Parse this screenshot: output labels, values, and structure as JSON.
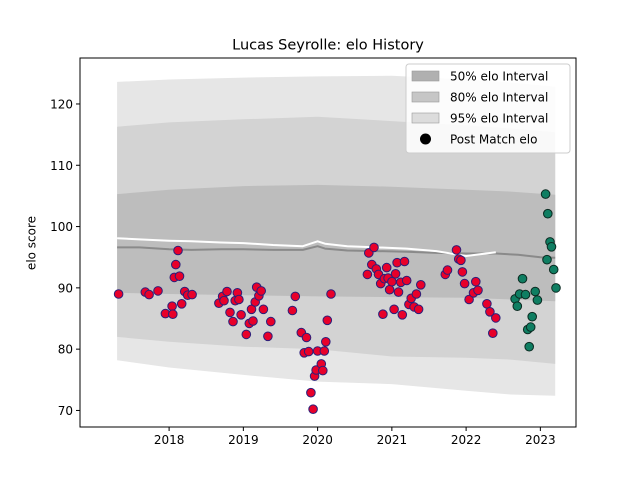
{
  "chart_data": {
    "type": "scatter",
    "title": "Lucas Seyrolle: elo History",
    "xlabel": "",
    "ylabel": "elo score",
    "xlim": [
      2016.8,
      2023.48
    ],
    "ylim": [
      67.3,
      127.5
    ],
    "x_ticks": [
      {
        "value": 2018,
        "label": "2018"
      },
      {
        "value": 2019,
        "label": "2019"
      },
      {
        "value": 2020,
        "label": "2020"
      },
      {
        "value": 2021,
        "label": "2021"
      },
      {
        "value": 2022,
        "label": "2022"
      },
      {
        "value": 2023,
        "label": "2023"
      }
    ],
    "y_ticks": [
      {
        "value": 70,
        "label": "70"
      },
      {
        "value": 80,
        "label": "80"
      },
      {
        "value": 90,
        "label": "90"
      },
      {
        "value": 100,
        "label": "100"
      },
      {
        "value": 110,
        "label": "110"
      },
      {
        "value": 120,
        "label": "120"
      }
    ],
    "legend_position": "top-right",
    "legend": [
      {
        "label": "50% elo Interval",
        "kind": "band",
        "color": "#b0b0b0"
      },
      {
        "label": "80% elo Interval",
        "kind": "band",
        "color": "#c6c6c6"
      },
      {
        "label": "95% elo Interval",
        "kind": "band",
        "color": "#dcdcdc"
      },
      {
        "label": "Post Match elo",
        "kind": "marker",
        "color": "#000000"
      }
    ],
    "colors": {
      "band_95": "#e6e6e6",
      "band_80": "#d3d3d3",
      "band_50": "#bdbdbd",
      "mean_line": "#8a8a8a",
      "median_line": "#ffffff",
      "history_fill": "#e8002a",
      "history_edge": "#2b1f7a",
      "recent_fill": "#0f7e62",
      "recent_edge": "#0b2b22"
    },
    "bands": {
      "x": [
        2017.3,
        2018.0,
        2019.0,
        2020.0,
        2021.0,
        2022.0,
        2022.6,
        2023.2
      ],
      "band_95": {
        "lower": [
          78.2,
          77.0,
          75.8,
          74.7,
          74.3,
          73.2,
          72.6,
          72.4
        ],
        "upper": [
          123.6,
          124.0,
          124.3,
          124.5,
          124.6,
          124.0,
          123.5,
          122.8
        ]
      },
      "band_80": {
        "lower": [
          82.0,
          81.2,
          80.4,
          80.0,
          78.8,
          78.6,
          78.3,
          77.6
        ],
        "upper": [
          116.3,
          117.0,
          117.5,
          117.9,
          117.2,
          116.5,
          116.0,
          115.4
        ]
      },
      "band_50": {
        "lower": [
          89.2,
          89.0,
          88.8,
          88.6,
          88.5,
          88.4,
          88.1,
          87.8
        ],
        "upper": [
          105.3,
          106.0,
          106.6,
          106.8,
          106.5,
          106.0,
          105.7,
          105.2
        ]
      }
    },
    "mean_line": {
      "x": [
        2017.3,
        2017.6,
        2018.0,
        2018.3,
        2018.7,
        2019.0,
        2019.4,
        2019.8,
        2020.0,
        2020.1,
        2020.4,
        2020.8,
        2021.2,
        2021.6,
        2022.0,
        2022.4,
        2022.7,
        2023.0,
        2023.2
      ],
      "y": [
        96.6,
        96.6,
        96.3,
        96.2,
        96.3,
        96.3,
        96.2,
        96.2,
        96.8,
        96.4,
        96.1,
        96.0,
        95.9,
        95.7,
        95.6,
        95.6,
        95.4,
        95.0,
        94.9
      ]
    },
    "median_line": {
      "x": [
        2017.3,
        2017.6,
        2018.0,
        2018.3,
        2018.7,
        2019.0,
        2019.4,
        2019.8,
        2020.0,
        2020.1,
        2020.4,
        2020.8,
        2021.2,
        2021.6,
        2022.0,
        2022.4
      ],
      "y": [
        98.1,
        97.9,
        97.7,
        97.6,
        97.4,
        97.3,
        97.0,
        96.8,
        97.6,
        97.2,
        96.8,
        96.6,
        96.4,
        96.0,
        95.2,
        95.8
      ]
    },
    "series": [
      {
        "name": "Post Match elo",
        "group": "history",
        "points": [
          [
            2017.32,
            89.0
          ],
          [
            2017.68,
            89.3
          ],
          [
            2017.73,
            88.9
          ],
          [
            2017.85,
            89.5
          ],
          [
            2017.95,
            85.8
          ],
          [
            2018.04,
            87.0
          ],
          [
            2018.05,
            85.7
          ],
          [
            2018.07,
            91.7
          ],
          [
            2018.09,
            93.8
          ],
          [
            2018.12,
            96.1
          ],
          [
            2018.14,
            91.9
          ],
          [
            2018.17,
            87.4
          ],
          [
            2018.21,
            89.4
          ],
          [
            2018.25,
            88.8
          ],
          [
            2018.31,
            88.9
          ],
          [
            2018.67,
            87.5
          ],
          [
            2018.72,
            88.6
          ],
          [
            2018.74,
            87.9
          ],
          [
            2018.78,
            89.4
          ],
          [
            2018.82,
            86.0
          ],
          [
            2018.86,
            84.5
          ],
          [
            2018.89,
            87.9
          ],
          [
            2018.92,
            89.2
          ],
          [
            2018.94,
            88.1
          ],
          [
            2018.97,
            85.6
          ],
          [
            2019.04,
            82.4
          ],
          [
            2019.08,
            84.2
          ],
          [
            2019.11,
            86.5
          ],
          [
            2019.13,
            84.6
          ],
          [
            2019.16,
            87.7
          ],
          [
            2019.18,
            90.1
          ],
          [
            2019.21,
            88.7
          ],
          [
            2019.24,
            89.5
          ],
          [
            2019.27,
            86.5
          ],
          [
            2019.33,
            82.1
          ],
          [
            2019.37,
            84.5
          ],
          [
            2019.66,
            86.3
          ],
          [
            2019.7,
            88.6
          ],
          [
            2019.78,
            82.7
          ],
          [
            2019.82,
            79.4
          ],
          [
            2019.85,
            81.9
          ],
          [
            2019.88,
            79.6
          ],
          [
            2019.91,
            72.9
          ],
          [
            2019.94,
            70.2
          ],
          [
            2019.96,
            75.6
          ],
          [
            2019.98,
            76.6
          ],
          [
            2020.0,
            79.7
          ],
          [
            2020.05,
            77.6
          ],
          [
            2020.07,
            76.5
          ],
          [
            2020.09,
            79.7
          ],
          [
            2020.11,
            81.2
          ],
          [
            2020.13,
            84.7
          ],
          [
            2020.18,
            89.0
          ],
          [
            2020.67,
            92.2
          ],
          [
            2020.69,
            95.7
          ],
          [
            2020.73,
            93.8
          ],
          [
            2020.76,
            96.6
          ],
          [
            2020.79,
            93.1
          ],
          [
            2020.82,
            92.2
          ],
          [
            2020.85,
            90.7
          ],
          [
            2020.88,
            85.7
          ],
          [
            2020.9,
            91.5
          ],
          [
            2020.93,
            93.3
          ],
          [
            2020.95,
            91.6
          ],
          [
            2020.97,
            89.7
          ],
          [
            2021.0,
            91.0
          ],
          [
            2021.03,
            86.5
          ],
          [
            2021.05,
            92.3
          ],
          [
            2021.07,
            94.1
          ],
          [
            2021.09,
            89.3
          ],
          [
            2021.12,
            90.9
          ],
          [
            2021.14,
            85.6
          ],
          [
            2021.17,
            94.3
          ],
          [
            2021.2,
            91.2
          ],
          [
            2021.23,
            87.3
          ],
          [
            2021.26,
            88.3
          ],
          [
            2021.3,
            86.9
          ],
          [
            2021.33,
            89.0
          ],
          [
            2021.36,
            86.5
          ],
          [
            2021.39,
            90.5
          ],
          [
            2021.72,
            92.2
          ],
          [
            2021.75,
            92.9
          ],
          [
            2021.87,
            96.2
          ],
          [
            2021.9,
            94.7
          ],
          [
            2021.93,
            94.5
          ],
          [
            2021.95,
            92.6
          ],
          [
            2021.98,
            90.7
          ],
          [
            2022.04,
            88.1
          ],
          [
            2022.1,
            89.2
          ],
          [
            2022.13,
            91.0
          ],
          [
            2022.16,
            89.6
          ],
          [
            2022.28,
            87.4
          ],
          [
            2022.32,
            86.1
          ],
          [
            2022.36,
            82.6
          ],
          [
            2022.4,
            85.1
          ]
        ]
      },
      {
        "name": "Post Match elo",
        "group": "recent",
        "points": [
          [
            2022.66,
            88.2
          ],
          [
            2022.69,
            87.0
          ],
          [
            2022.72,
            89.0
          ],
          [
            2022.76,
            91.5
          ],
          [
            2022.8,
            88.9
          ],
          [
            2022.83,
            83.2
          ],
          [
            2022.85,
            80.4
          ],
          [
            2022.87,
            83.6
          ],
          [
            2022.89,
            85.3
          ],
          [
            2022.93,
            89.4
          ],
          [
            2022.96,
            88.0
          ],
          [
            2023.07,
            105.3
          ],
          [
            2023.09,
            94.6
          ],
          [
            2023.1,
            102.1
          ],
          [
            2023.13,
            97.5
          ],
          [
            2023.15,
            96.7
          ],
          [
            2023.18,
            93.0
          ],
          [
            2023.21,
            90.0
          ]
        ]
      }
    ]
  }
}
